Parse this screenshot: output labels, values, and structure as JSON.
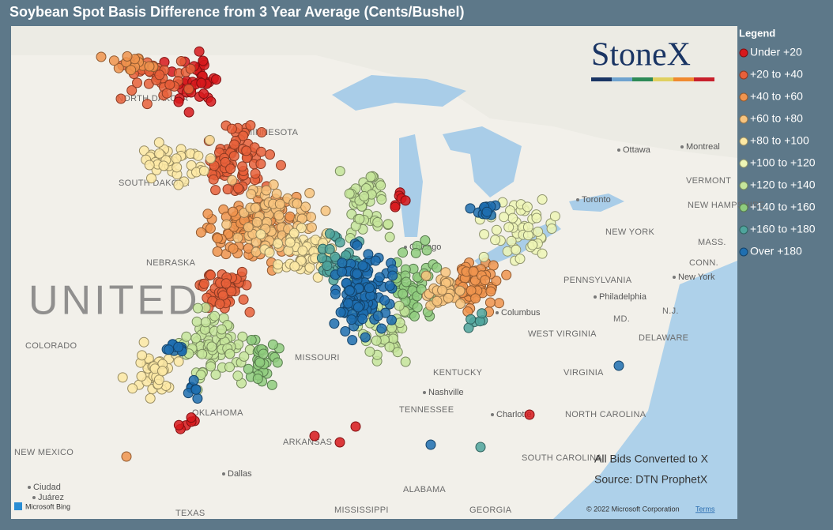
{
  "title": "Soybean Spot Basis Difference from 3 Year Average (Cents/Bushel)",
  "legend": {
    "title": "Legend",
    "items": [
      {
        "label": "Under +20",
        "color": "#d7191c"
      },
      {
        "label": "+20 to +40",
        "color": "#e8603a"
      },
      {
        "label": "+40 to +60",
        "color": "#f0944e"
      },
      {
        "label": "+60 to +80",
        "color": "#f8c47e"
      },
      {
        "label": "+80 to +100",
        "color": "#fde9a4"
      },
      {
        "label": "+100 to +120",
        "color": "#eef6b6"
      },
      {
        "label": "+120 to +140",
        "color": "#c6e59b"
      },
      {
        "label": "+140 to +160",
        "color": "#8fcc7e"
      },
      {
        "label": "+160 to +180",
        "color": "#4fa49c"
      },
      {
        "label": "Over +180",
        "color": "#1f6fb0"
      }
    ]
  },
  "logo": "StoneX",
  "notes": [
    "All Bids Converted to X",
    "Source: DTN ProphetX"
  ],
  "map_labels": [
    "NORTH DAKOTA",
    "MINNESOTA",
    "SOUTH DAKOTA",
    "NEBRASKA",
    "COLORADO",
    "MISSOURI",
    "KENTUCKY",
    "TENNESSEE",
    "OKLAHOMA",
    "ARKANSAS",
    "NEW MEXICO",
    "TEXAS",
    "MISSISSIPPI",
    "ALABAMA",
    "GEORGIA",
    "SOUTH CAROLINA",
    "NORTH CAROLINA",
    "VIRGINIA",
    "WEST VIRGINIA",
    "PENNSYLVANIA",
    "NEW YORK",
    "VERMONT",
    "NEW HAMPSHIRE",
    "MASS.",
    "CONN.",
    "N.J.",
    "MD.",
    "DELAWARE"
  ],
  "cities": [
    "Ottawa",
    "Montreal",
    "Toronto",
    "Chicago",
    "Columbus",
    "Philadelphia",
    "New York",
    "Nashville",
    "Charlotte",
    "Dallas",
    "Ciudad",
    "Juárez"
  ],
  "country_label": "UNITED",
  "bing": "Microsoft Bing",
  "attribution": "© 2022 Microsoft Corporation",
  "terms": "Terms"
}
